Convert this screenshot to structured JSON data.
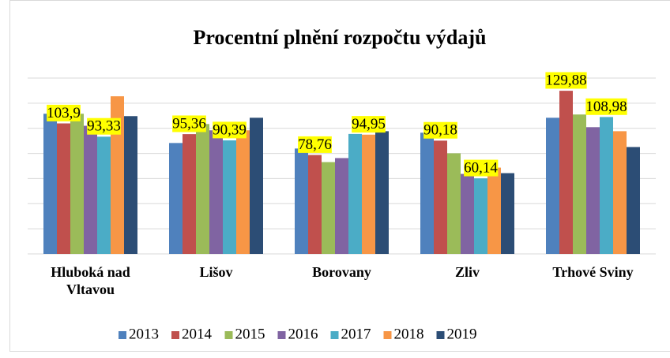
{
  "chart_data": {
    "type": "bar",
    "title": "Procentní plnění rozpočtu výdajů",
    "categories": [
      "Hluboká nad Vltavou",
      "Lišov",
      "Borovany",
      "Zliv",
      "Trhové Sviny"
    ],
    "ylim": [
      0,
      140
    ],
    "yticks": [
      0,
      20,
      40,
      60,
      80,
      100,
      120,
      140
    ],
    "grid": true,
    "legend": "bottom",
    "series": [
      {
        "name": "2013",
        "color": "#4f81bd",
        "values": [
          111.6,
          88.3,
          83.9,
          96.5,
          108.4
        ]
      },
      {
        "name": "2014",
        "color": "#c0504d",
        "values": [
          103.9,
          95.36,
          78.76,
          90.18,
          129.88
        ],
        "value_labels": [
          "103,9",
          "95,36",
          "78,76",
          "90,18",
          "129,88"
        ]
      },
      {
        "name": "2015",
        "color": "#9bbb59",
        "values": [
          111.6,
          103.4,
          73.1,
          80.1,
          111
        ]
      },
      {
        "name": "2016",
        "color": "#8064a2",
        "values": [
          102,
          98.4,
          76.3,
          63.7,
          100.9
        ]
      },
      {
        "name": "2017",
        "color": "#4bacc6",
        "values": [
          93.33,
          90.39,
          95.5,
          60.14,
          108.98
        ],
        "value_labels": [
          "93,33",
          "90,39",
          null,
          "60,14",
          "108,98"
        ]
      },
      {
        "name": "2018",
        "color": "#f79646",
        "values": [
          125.5,
          98.4,
          94.95,
          68.7,
          97.7
        ],
        "value_labels": [
          null,
          null,
          "94,95",
          null,
          null
        ]
      },
      {
        "name": "2019",
        "color": "#2c4d75",
        "values": [
          109.7,
          108.4,
          97.7,
          64.3,
          85.1
        ]
      }
    ]
  }
}
